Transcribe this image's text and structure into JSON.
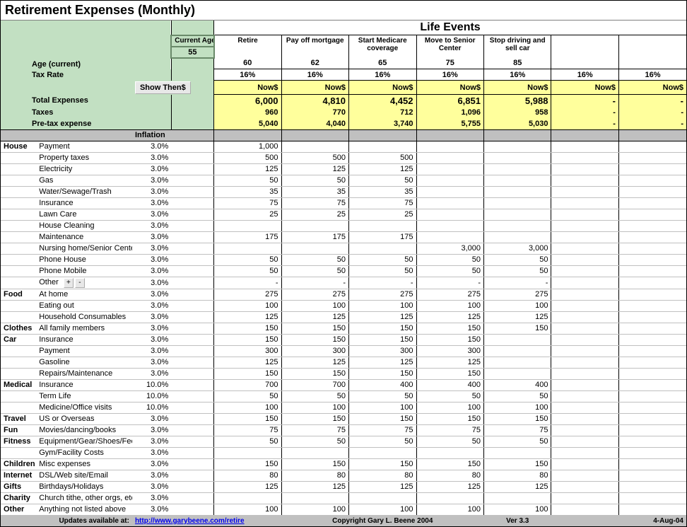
{
  "title": "Retirement Expenses (Monthly)",
  "header": {
    "life_events_title": "Life Events",
    "current_age_label": "Current Age",
    "current_age": "55",
    "age_label": "Age (current)",
    "tax_rate_label": "Tax Rate",
    "show_then_btn": "Show Then$",
    "events": [
      {
        "name": "Retire",
        "age": "60",
        "tax": "16%",
        "now": "Now$",
        "total": "6,000",
        "taxes": "960",
        "pretax": "5,040"
      },
      {
        "name": "Pay off mortgage",
        "age": "62",
        "tax": "16%",
        "now": "Now$",
        "total": "4,810",
        "taxes": "770",
        "pretax": "4,040"
      },
      {
        "name": "Start Medicare coverage",
        "age": "65",
        "tax": "16%",
        "now": "Now$",
        "total": "4,452",
        "taxes": "712",
        "pretax": "3,740"
      },
      {
        "name": "Move to Senior Center",
        "age": "75",
        "tax": "16%",
        "now": "Now$",
        "total": "6,851",
        "taxes": "1,096",
        "pretax": "5,755"
      },
      {
        "name": "Stop driving and sell car",
        "age": "85",
        "tax": "16%",
        "now": "Now$",
        "total": "5,988",
        "taxes": "958",
        "pretax": "5,030"
      },
      {
        "name": "",
        "age": "",
        "tax": "16%",
        "now": "Now$",
        "total": "-",
        "taxes": "-",
        "pretax": "-"
      },
      {
        "name": "",
        "age": "",
        "tax": "16%",
        "now": "Now$",
        "total": "-",
        "taxes": "-",
        "pretax": "-"
      }
    ],
    "totals_label": "Total Expenses",
    "taxes_label": "Taxes",
    "pretax_label": "Pre-tax expense",
    "inflation_label": "Inflation"
  },
  "categories": [
    {
      "cat": "House",
      "items": [
        {
          "name": "Payment",
          "inf": "3.0%",
          "v": [
            "1,000",
            "",
            "",
            "",
            "",
            "",
            ""
          ]
        },
        {
          "name": "Property taxes",
          "inf": "3.0%",
          "v": [
            "500",
            "500",
            "500",
            "",
            "",
            "",
            ""
          ]
        },
        {
          "name": "Electricity",
          "inf": "3.0%",
          "v": [
            "125",
            "125",
            "125",
            "",
            "",
            "",
            ""
          ]
        },
        {
          "name": "Gas",
          "inf": "3.0%",
          "v": [
            "50",
            "50",
            "50",
            "",
            "",
            "",
            ""
          ]
        },
        {
          "name": "Water/Sewage/Trash",
          "inf": "3.0%",
          "v": [
            "35",
            "35",
            "35",
            "",
            "",
            "",
            ""
          ]
        },
        {
          "name": "Insurance",
          "inf": "3.0%",
          "v": [
            "75",
            "75",
            "75",
            "",
            "",
            "",
            ""
          ]
        },
        {
          "name": "Lawn Care",
          "inf": "3.0%",
          "v": [
            "25",
            "25",
            "25",
            "",
            "",
            "",
            ""
          ]
        },
        {
          "name": "House Cleaning",
          "inf": "3.0%",
          "v": [
            "",
            "",
            "",
            "",
            "",
            "",
            ""
          ]
        },
        {
          "name": "Maintenance",
          "inf": "3.0%",
          "v": [
            "175",
            "175",
            "175",
            "",
            "",
            "",
            ""
          ]
        },
        {
          "name": "Nursing home/Senior Center",
          "inf": "3.0%",
          "v": [
            "",
            "",
            "",
            "3,000",
            "3,000",
            "",
            ""
          ]
        },
        {
          "name": "Phone House",
          "inf": "3.0%",
          "v": [
            "50",
            "50",
            "50",
            "50",
            "50",
            "",
            ""
          ]
        },
        {
          "name": "Phone Mobile",
          "inf": "3.0%",
          "v": [
            "50",
            "50",
            "50",
            "50",
            "50",
            "",
            ""
          ]
        },
        {
          "name": "Other",
          "inf": "3.0%",
          "v": [
            "-",
            "-",
            "-",
            "-",
            "-",
            "",
            ""
          ],
          "pm": true
        }
      ]
    },
    {
      "cat": "Food",
      "items": [
        {
          "name": "At home",
          "inf": "3.0%",
          "v": [
            "275",
            "275",
            "275",
            "275",
            "275",
            "",
            ""
          ]
        },
        {
          "name": "Eating out",
          "inf": "3.0%",
          "v": [
            "100",
            "100",
            "100",
            "100",
            "100",
            "",
            ""
          ]
        },
        {
          "name": "Household Consumables",
          "inf": "3.0%",
          "v": [
            "125",
            "125",
            "125",
            "125",
            "125",
            "",
            ""
          ]
        }
      ]
    },
    {
      "cat": "Clothes",
      "items": [
        {
          "name": "All family members",
          "inf": "3.0%",
          "v": [
            "150",
            "150",
            "150",
            "150",
            "150",
            "",
            ""
          ]
        }
      ]
    },
    {
      "cat": "Car",
      "items": [
        {
          "name": "Insurance",
          "inf": "3.0%",
          "v": [
            "150",
            "150",
            "150",
            "150",
            "",
            "",
            ""
          ]
        },
        {
          "name": "Payment",
          "inf": "3.0%",
          "v": [
            "300",
            "300",
            "300",
            "300",
            "",
            "",
            ""
          ]
        },
        {
          "name": "Gasoline",
          "inf": "3.0%",
          "v": [
            "125",
            "125",
            "125",
            "125",
            "",
            "",
            ""
          ]
        },
        {
          "name": "Repairs/Maintenance",
          "inf": "3.0%",
          "v": [
            "150",
            "150",
            "150",
            "150",
            "",
            "",
            ""
          ]
        }
      ]
    },
    {
      "cat": "Medical",
      "items": [
        {
          "name": "Insurance",
          "inf": "10.0%",
          "v": [
            "700",
            "700",
            "400",
            "400",
            "400",
            "",
            ""
          ]
        },
        {
          "name": "Term Life",
          "inf": "10.0%",
          "v": [
            "50",
            "50",
            "50",
            "50",
            "50",
            "",
            ""
          ]
        },
        {
          "name": "Medicine/Office visits",
          "inf": "10.0%",
          "v": [
            "100",
            "100",
            "100",
            "100",
            "100",
            "",
            ""
          ]
        }
      ]
    },
    {
      "cat": "Travel",
      "items": [
        {
          "name": "US or Overseas",
          "inf": "3.0%",
          "v": [
            "150",
            "150",
            "150",
            "150",
            "150",
            "",
            ""
          ]
        }
      ]
    },
    {
      "cat": "Fun",
      "items": [
        {
          "name": "Movies/dancing/books",
          "inf": "3.0%",
          "v": [
            "75",
            "75",
            "75",
            "75",
            "75",
            "",
            ""
          ]
        }
      ]
    },
    {
      "cat": "Fitness",
      "items": [
        {
          "name": "Equipment/Gear/Shoes/Fees",
          "inf": "3.0%",
          "v": [
            "50",
            "50",
            "50",
            "50",
            "50",
            "",
            ""
          ]
        },
        {
          "name": "Gym/Facility Costs",
          "inf": "3.0%",
          "v": [
            "",
            "",
            "",
            "",
            "",
            "",
            ""
          ]
        }
      ]
    },
    {
      "cat": "Children",
      "items": [
        {
          "name": "Misc expenses",
          "inf": "3.0%",
          "v": [
            "150",
            "150",
            "150",
            "150",
            "150",
            "",
            ""
          ]
        }
      ]
    },
    {
      "cat": "Internet",
      "items": [
        {
          "name": "DSL/Web site/Email",
          "inf": "3.0%",
          "v": [
            "80",
            "80",
            "80",
            "80",
            "80",
            "",
            ""
          ]
        }
      ]
    },
    {
      "cat": "Gifts",
      "items": [
        {
          "name": "Birthdays/Holidays",
          "inf": "3.0%",
          "v": [
            "125",
            "125",
            "125",
            "125",
            "125",
            "",
            ""
          ]
        }
      ]
    },
    {
      "cat": "Charity",
      "items": [
        {
          "name": "Church tithe, other orgs, etc.",
          "inf": "3.0%",
          "v": [
            "",
            "",
            "",
            "",
            "",
            "",
            ""
          ]
        }
      ]
    },
    {
      "cat": "Other",
      "items": [
        {
          "name": "Anything not listed above",
          "inf": "3.0%",
          "v": [
            "100",
            "100",
            "100",
            "100",
            "100",
            "",
            ""
          ]
        }
      ]
    }
  ],
  "footer": {
    "updates_label": "Updates available at:",
    "url": "http://www.garybeene.com/retire",
    "copyright": "Copyright Gary L. Beene 2004",
    "version": "Ver 3.3",
    "date": "4-Aug-04"
  }
}
